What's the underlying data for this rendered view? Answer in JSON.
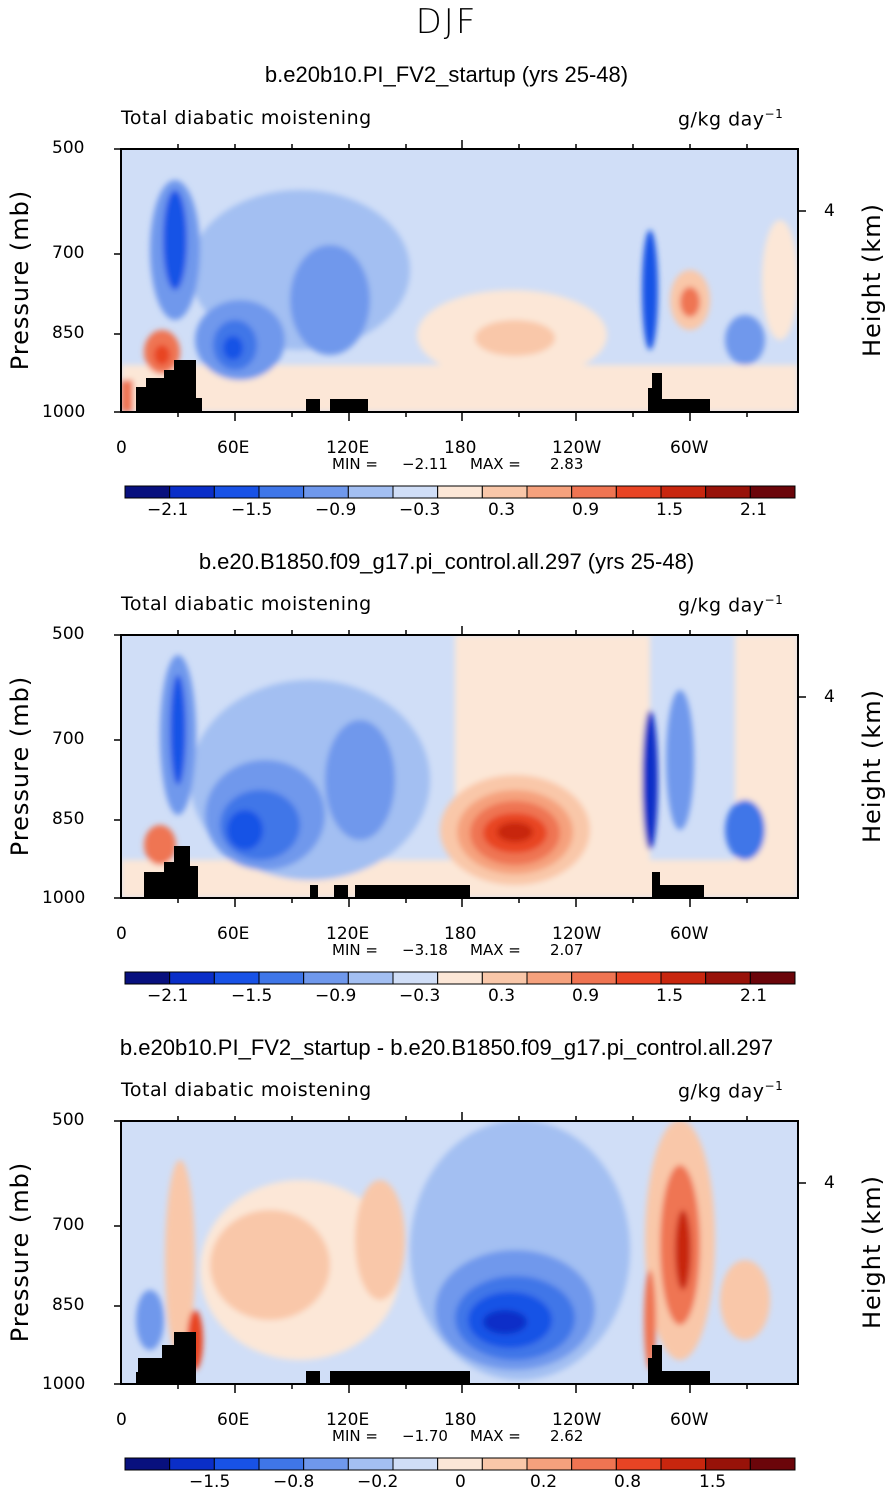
{
  "figure_title": "DJF",
  "chart_data": [
    {
      "type": "heatmap",
      "title": "b.e20b10.PI_FV2_startup (yrs 25-48)",
      "left_label": "Total diabatic moistening",
      "units_label": "g/kg day",
      "units_exp": "−1",
      "ylabel": "Pressure (mb)",
      "ylabel_right": "Height (km)",
      "right_ticks": [
        "4"
      ],
      "y_ticks": [
        "500",
        "700",
        "850",
        "1000"
      ],
      "x_ticks": [
        "0",
        "60E",
        "120E",
        "180",
        "120W",
        "60W"
      ],
      "min_label": "MIN =",
      "min_value": "−2.11",
      "max_label": "MAX =",
      "max_value": "2.83",
      "colorbar_ticks": [
        "−2.1",
        "−1.5",
        "−0.9",
        "−0.3",
        "0.3",
        "0.9",
        "1.5",
        "2.1"
      ]
    },
    {
      "type": "heatmap",
      "title": "b.e20.B1850.f09_g17.pi_control.all.297 (yrs 25-48)",
      "left_label": "Total diabatic moistening",
      "units_label": "g/kg day",
      "units_exp": "−1",
      "ylabel": "Pressure (mb)",
      "ylabel_right": "Height (km)",
      "right_ticks": [
        "4"
      ],
      "y_ticks": [
        "500",
        "700",
        "850",
        "1000"
      ],
      "x_ticks": [
        "0",
        "60E",
        "120E",
        "180",
        "120W",
        "60W"
      ],
      "min_label": "MIN =",
      "min_value": "−3.18",
      "max_label": "MAX =",
      "max_value": "2.07",
      "colorbar_ticks": [
        "−2.1",
        "−1.5",
        "−0.9",
        "−0.3",
        "0.3",
        "0.9",
        "1.5",
        "2.1"
      ]
    },
    {
      "type": "heatmap",
      "title": "b.e20b10.PI_FV2_startup - b.e20.B1850.f09_g17.pi_control.all.297",
      "left_label": "Total diabatic moistening",
      "units_label": "g/kg day",
      "units_exp": "−1",
      "ylabel": "Pressure (mb)",
      "ylabel_right": "Height (km)",
      "right_ticks": [
        "4"
      ],
      "y_ticks": [
        "500",
        "700",
        "850",
        "1000"
      ],
      "x_ticks": [
        "0",
        "60E",
        "120E",
        "180",
        "120W",
        "60W"
      ],
      "min_label": "MIN =",
      "min_value": "−1.70",
      "max_label": "MAX =",
      "max_value": "2.62",
      "colorbar_ticks": [
        "−1.5",
        "−0.8",
        "−0.2",
        "0",
        "0.2",
        "0.8",
        "1.5"
      ]
    }
  ],
  "colors": {
    "palette": [
      "#08107e",
      "#0a2ec8",
      "#1852e6",
      "#3f76e8",
      "#6f98ec",
      "#a3bff2",
      "#d0def7",
      "#fce7d7",
      "#f9c7a9",
      "#f5a17d",
      "#ef7452",
      "#e84424",
      "#c8260e",
      "#981209",
      "#6b050a"
    ],
    "terrain": "#000000"
  }
}
